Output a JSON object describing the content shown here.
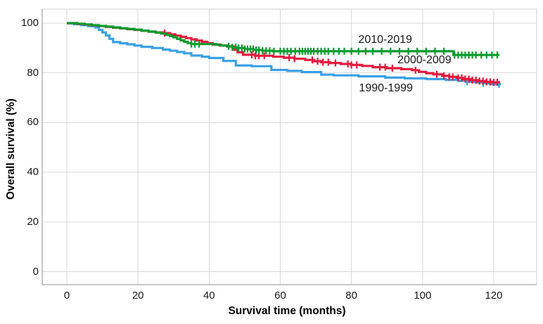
{
  "chart_data": {
    "type": "line",
    "subtype": "kaplan-meier-step-survival",
    "title": "",
    "xlabel": "Survival time (months)",
    "ylabel": "Overall survival (%)",
    "xlim": [
      0,
      122
    ],
    "ylim": [
      0,
      100
    ],
    "x_ticks": [
      0,
      20,
      40,
      60,
      80,
      100,
      120
    ],
    "y_ticks": [
      0,
      20,
      40,
      60,
      80,
      100
    ],
    "grid": true,
    "grid_color": "#d9d9d9",
    "frame_color_main": "#8f8f8f",
    "frame_color_light": "#d2d2d2",
    "legend_position": "inline-labels",
    "series": [
      {
        "name": "1990-1999",
        "color": "#3aa0e4",
        "label_pos": {
          "t": 89.7,
          "v": 73.6
        },
        "end_time": 122,
        "steps": [
          [
            0,
            100
          ],
          [
            2,
            99.6
          ],
          [
            4,
            99.2
          ],
          [
            6,
            98.8
          ],
          [
            8,
            98.3
          ],
          [
            9,
            97.3
          ],
          [
            10,
            96.3
          ],
          [
            11,
            95.1
          ],
          [
            12,
            93.7
          ],
          [
            13,
            92.4
          ],
          [
            15,
            91.9
          ],
          [
            17,
            91.5
          ],
          [
            19,
            91.0
          ],
          [
            21,
            90.5
          ],
          [
            24,
            90.0
          ],
          [
            27,
            89.4
          ],
          [
            29,
            88.9
          ],
          [
            31,
            88.4
          ],
          [
            33,
            87.9
          ],
          [
            35,
            87.0
          ],
          [
            38,
            86.5
          ],
          [
            40,
            86.0
          ],
          [
            44,
            84.8
          ],
          [
            47.5,
            83.0
          ],
          [
            52,
            82.7
          ],
          [
            57.5,
            81.2
          ],
          [
            62,
            80.8
          ],
          [
            66,
            80.3
          ],
          [
            71.5,
            79.3
          ],
          [
            75,
            79.0
          ],
          [
            82,
            78.6
          ],
          [
            89.5,
            78.1
          ],
          [
            95,
            77.8
          ],
          [
            101,
            77.5
          ],
          [
            106.5,
            77.2
          ],
          [
            110,
            76.8
          ],
          [
            112.5,
            76.4
          ],
          [
            115,
            76.1
          ],
          [
            117,
            75.8
          ],
          [
            119,
            75.4
          ]
        ],
        "censor_times": [
          112.5,
          117,
          121.5
        ]
      },
      {
        "name": "2000-2009",
        "color": "#e31a3d",
        "label_pos": {
          "t": 100.5,
          "v": 84.9
        },
        "end_time": 121.8,
        "steps": [
          [
            0,
            100
          ],
          [
            3,
            99.7
          ],
          [
            5,
            99.4
          ],
          [
            7,
            99.1
          ],
          [
            9,
            98.8
          ],
          [
            11,
            98.5
          ],
          [
            13,
            98.2
          ],
          [
            15,
            97.9
          ],
          [
            17,
            97.6
          ],
          [
            19,
            97.3
          ],
          [
            21,
            97.0
          ],
          [
            23,
            96.6
          ],
          [
            25,
            96.3
          ],
          [
            27,
            96.0
          ],
          [
            29,
            95.5
          ],
          [
            30.5,
            95.0
          ],
          [
            32,
            94.5
          ],
          [
            33.5,
            94.0
          ],
          [
            35,
            93.5
          ],
          [
            36.5,
            93.0
          ],
          [
            38,
            92.5
          ],
          [
            39.5,
            92.0
          ],
          [
            41,
            91.4
          ],
          [
            43,
            91.0
          ],
          [
            45,
            90.6
          ],
          [
            47,
            89.3
          ],
          [
            48,
            88.3
          ],
          [
            49.5,
            87.3
          ],
          [
            53,
            86.9
          ],
          [
            58,
            86.5
          ],
          [
            61,
            86.1
          ],
          [
            64,
            85.7
          ],
          [
            67,
            85.2
          ],
          [
            69.5,
            84.7
          ],
          [
            71.5,
            84.3
          ],
          [
            74,
            84.0
          ],
          [
            77,
            83.6
          ],
          [
            80,
            83.2
          ],
          [
            83,
            82.8
          ],
          [
            86,
            82.3
          ],
          [
            90,
            81.9
          ],
          [
            94,
            81.5
          ],
          [
            97,
            81.1
          ],
          [
            99,
            80.4
          ],
          [
            101,
            79.9
          ],
          [
            103,
            79.4
          ],
          [
            105.5,
            78.8
          ],
          [
            107.5,
            78.4
          ],
          [
            109.5,
            78.0
          ],
          [
            111.5,
            77.5
          ],
          [
            113.5,
            77.1
          ],
          [
            115.5,
            76.7
          ],
          [
            117.5,
            76.4
          ],
          [
            119.5,
            76.2
          ]
        ],
        "censor_times": [
          27.5,
          52,
          53,
          54,
          55.5,
          62.5,
          64,
          69,
          70.5,
          72,
          73.5,
          75.5,
          79,
          80,
          81.5,
          88,
          89.5,
          91.5,
          98,
          104,
          106,
          107.5,
          108.5,
          110,
          111,
          112,
          113,
          114,
          115,
          116,
          117,
          118,
          119,
          120,
          121
        ]
      },
      {
        "name": "2010-2019",
        "color": "#0a9b2e",
        "label_pos": {
          "t": 89.5,
          "v": 93.2
        },
        "end_time": 121.6,
        "steps": [
          [
            0,
            100
          ],
          [
            3,
            99.8
          ],
          [
            5,
            99.5
          ],
          [
            7,
            99.2
          ],
          [
            9,
            98.9
          ],
          [
            11,
            98.6
          ],
          [
            13,
            98.3
          ],
          [
            15,
            98.0
          ],
          [
            17,
            97.7
          ],
          [
            19,
            97.4
          ],
          [
            21,
            97.0
          ],
          [
            23,
            96.6
          ],
          [
            25,
            96.2
          ],
          [
            26.5,
            95.8
          ],
          [
            28,
            95.3
          ],
          [
            29,
            94.8
          ],
          [
            30,
            94.3
          ],
          [
            31,
            93.7
          ],
          [
            32,
            93.1
          ],
          [
            33,
            92.5
          ],
          [
            34,
            92.0
          ],
          [
            35,
            91.6
          ],
          [
            42,
            91.3
          ],
          [
            43.5,
            91.0
          ],
          [
            45,
            90.7
          ],
          [
            46.5,
            90.3
          ],
          [
            48,
            90.0
          ],
          [
            50,
            89.6
          ],
          [
            52.5,
            89.2
          ],
          [
            55,
            88.9
          ],
          [
            58,
            88.7
          ],
          [
            108.7,
            87.2
          ]
        ],
        "censor_times": [
          35,
          36,
          37.2,
          45.5,
          46.5,
          47.5,
          48.3,
          49.2,
          50,
          50.8,
          51.6,
          52.4,
          53.2,
          54,
          55,
          56,
          57,
          58.2,
          60,
          61,
          62,
          63,
          64.2,
          65.4,
          66.2,
          67,
          67.8,
          68.6,
          69.4,
          70.5,
          71.5,
          72.5,
          73.5,
          75,
          76.5,
          78,
          80,
          82,
          84,
          86,
          88.5,
          91,
          93.5,
          96,
          98.5,
          101,
          103.5,
          106,
          109,
          110,
          111,
          112,
          113,
          114,
          115,
          116.5,
          118,
          119.5,
          121
        ]
      }
    ]
  }
}
